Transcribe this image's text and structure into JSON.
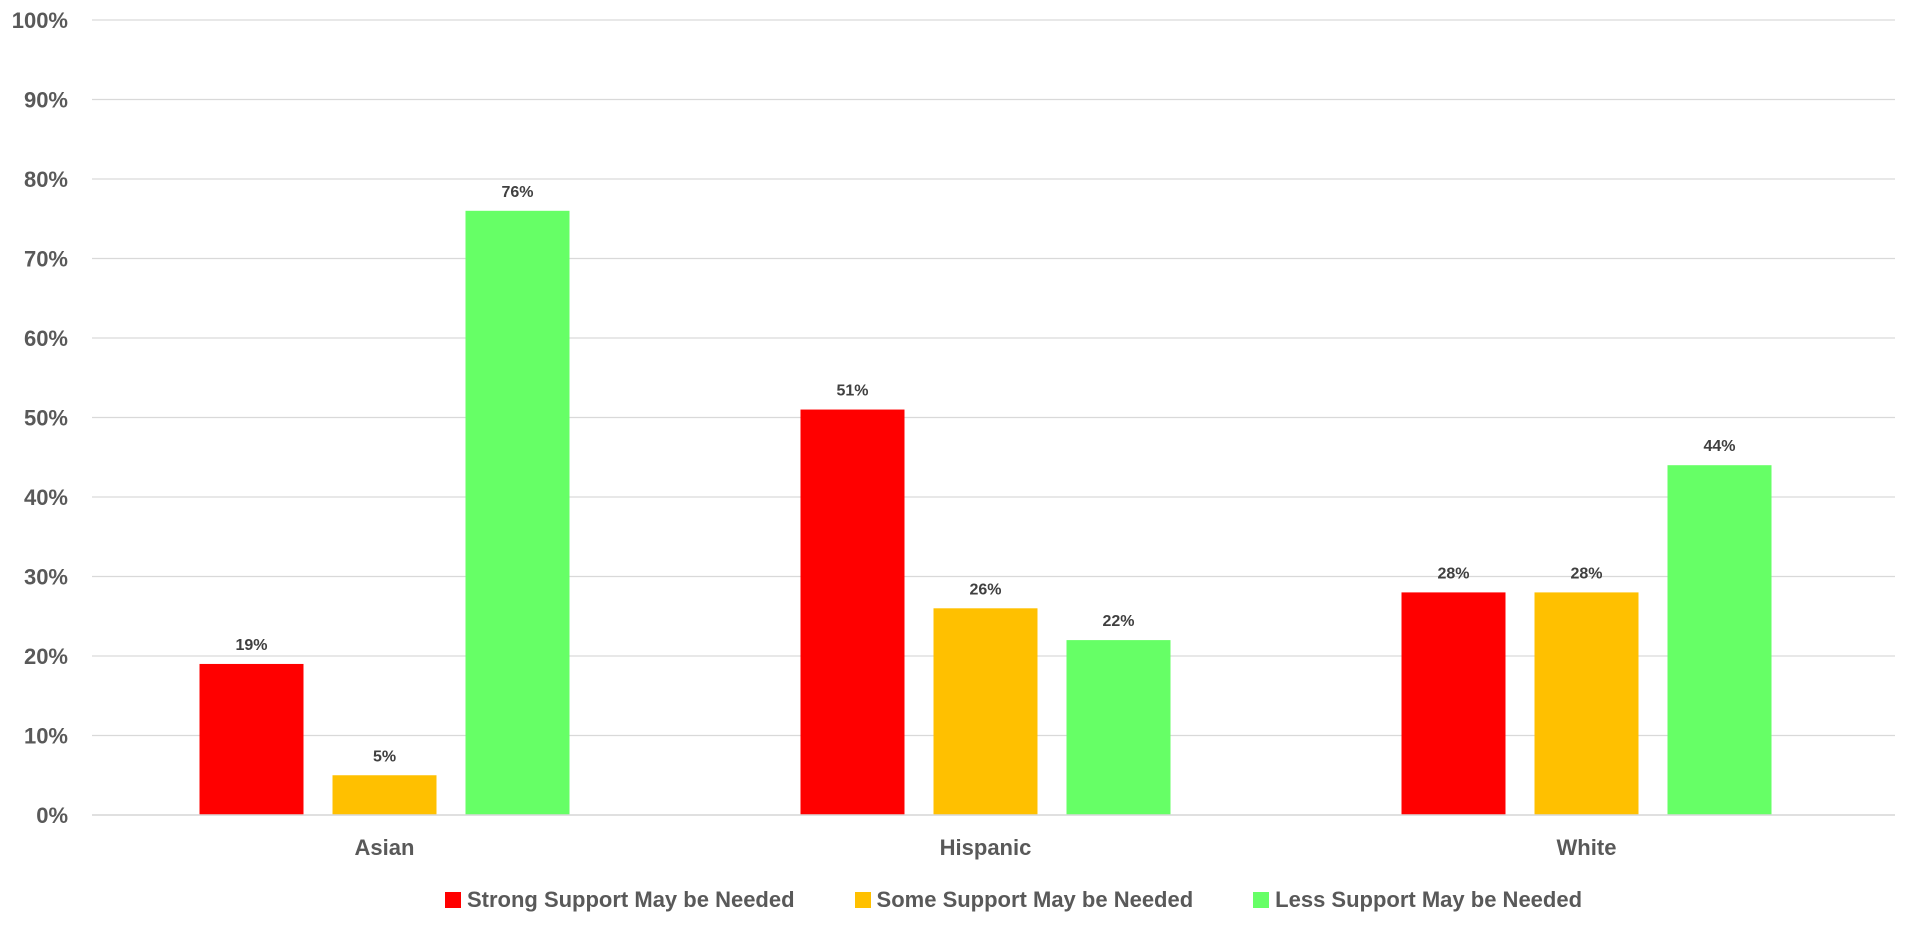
{
  "chart_data": {
    "type": "bar",
    "title": "",
    "xlabel": "",
    "ylabel": "",
    "categories": [
      "Asian",
      "Hispanic",
      "White"
    ],
    "series": [
      {
        "name": "Strong Support May be Needed",
        "color": "#ff0000",
        "values": [
          19,
          51,
          28
        ],
        "labels": [
          "19%",
          "51%",
          "28%"
        ]
      },
      {
        "name": "Some Support May be Needed",
        "color": "#ffc000",
        "values": [
          5,
          26,
          28
        ],
        "labels": [
          "5%",
          "26%",
          "28%"
        ]
      },
      {
        "name": "Less Support May be Needed",
        "color": "#66ff66",
        "values": [
          76,
          22,
          44
        ],
        "labels": [
          "76%",
          "22%",
          "44%"
        ]
      }
    ],
    "ylim": [
      0,
      100
    ],
    "yticks": [
      "0%",
      "10%",
      "20%",
      "30%",
      "40%",
      "50%",
      "60%",
      "70%",
      "80%",
      "90%",
      "100%"
    ],
    "grid": true,
    "legend_position": "bottom"
  }
}
